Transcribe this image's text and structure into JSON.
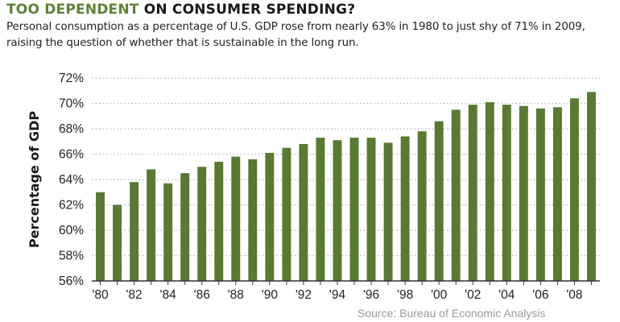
{
  "header": {
    "title_highlight": "TOO DEPENDENT",
    "title_rest": " ON CONSUMER SPENDING?",
    "subtitle": "Personal consumption as a percentage of U.S. GDP rose from nearly 63% in 1980 to just shy of 71% in 2009, raising the question of whether that is sustainable in the long run."
  },
  "source": "Source: Bureau of Economic Analysis",
  "colors": {
    "bar": "#587a33",
    "grid": "#b5b5b5",
    "axis": "#333333",
    "highlight": "#5e8237"
  },
  "chart_data": {
    "type": "bar",
    "title": "TOO DEPENDENT ON CONSUMER SPENDING?",
    "xlabel": "",
    "ylabel": "Percentage of GDP",
    "ylim": [
      56,
      72
    ],
    "yticks": [
      56,
      58,
      60,
      62,
      64,
      66,
      68,
      70,
      72
    ],
    "ytick_labels": [
      "56%",
      "58%",
      "60%",
      "62%",
      "64%",
      "66%",
      "68%",
      "70%",
      "72%"
    ],
    "grid": true,
    "categories": [
      "1980",
      "1981",
      "1982",
      "1983",
      "1984",
      "1985",
      "1986",
      "1987",
      "1988",
      "1989",
      "1990",
      "1991",
      "1992",
      "1993",
      "1994",
      "1995",
      "1996",
      "1997",
      "1998",
      "1999",
      "2000",
      "2001",
      "2002",
      "2003",
      "2004",
      "2005",
      "2006",
      "2007",
      "2008",
      "2009"
    ],
    "xtick_labels": [
      "'80",
      "",
      "'82",
      "",
      "'84",
      "",
      "'86",
      "",
      "'88",
      "",
      "'90",
      "",
      "'92",
      "",
      "'94",
      "",
      "'96",
      "",
      "'98",
      "",
      "'00",
      "",
      "'02",
      "",
      "'04",
      "",
      "'06",
      "",
      "'08",
      ""
    ],
    "values": [
      63.0,
      62.0,
      63.8,
      64.8,
      63.7,
      64.5,
      65.0,
      65.4,
      65.8,
      65.6,
      66.1,
      66.5,
      66.8,
      67.3,
      67.1,
      67.3,
      67.3,
      66.9,
      67.4,
      67.8,
      68.6,
      69.5,
      69.9,
      70.1,
      69.9,
      69.8,
      69.6,
      69.7,
      70.4,
      70.9
    ]
  }
}
